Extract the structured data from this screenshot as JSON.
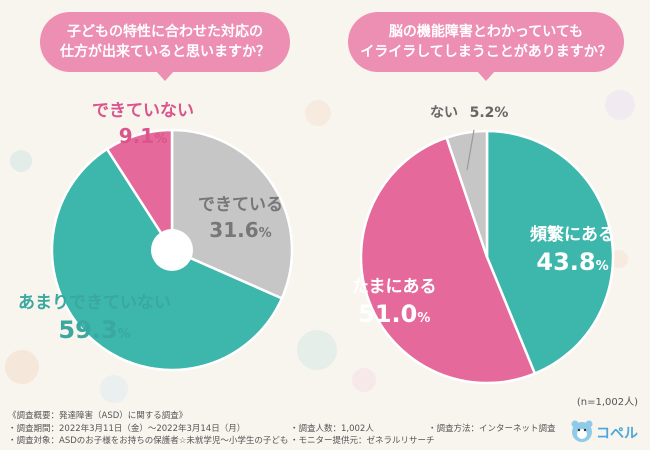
{
  "questions": [
    "子どもの特性に合わせた対応の\n仕方が出来ていると思いますか？",
    "脳の機能障害とわかっていても\nイライラしてしまうことがありますか？"
  ],
  "chart_data": [
    {
      "type": "pie",
      "title": "子どもの特性に合わせた対応の仕方が出来ていると思いますか？",
      "slices": [
        {
          "label": "できている",
          "value": 31.6,
          "color": "#c6c6c6",
          "text_color": "#777777"
        },
        {
          "label": "あまりできていない",
          "value": 59.3,
          "color": "#3db6ac",
          "text_color": "#3aa89f"
        },
        {
          "label": "できていない",
          "value": 9.1,
          "color": "#e56a9b",
          "text_color": "#d9558b"
        }
      ],
      "unit": "%"
    },
    {
      "type": "pie",
      "title": "脳の機能障害とわかっていてもイライラしてしまうことがありますか？",
      "slices": [
        {
          "label": "頻繁にある",
          "value": 43.8,
          "color": "#3db6ac",
          "text_color": "#ffffff"
        },
        {
          "label": "たまにある",
          "value": 51.0,
          "color": "#e56a9b",
          "text_color": "#ffffff"
        },
        {
          "label": "ない",
          "value": 5.2,
          "color": "#c6c6c6",
          "text_color": "#666666"
        }
      ],
      "unit": "%"
    }
  ],
  "sample_note": "(n=1,002人)",
  "footer": {
    "title": "《調査概要：発達障害（ASD）に関する調査》",
    "period": "・調査期間：2022年3月11日（金）〜2022年3月14日（月）",
    "target": "・調査対象：ASDのお子様をお持ちの保護者☆未就学児〜小学生の子ども",
    "count": "・調査人数：1,002人",
    "provider": "・モニター提供元：ゼネラルリサーチ",
    "method": "・調査方法：インターネット調査"
  },
  "logo": {
    "text": "コペル"
  },
  "colors": {
    "teal": "#3db6ac",
    "pink": "#e56a9b",
    "gray": "#c6c6c6",
    "bubble": "#ec8fb2",
    "background": "#f8f4ee"
  }
}
